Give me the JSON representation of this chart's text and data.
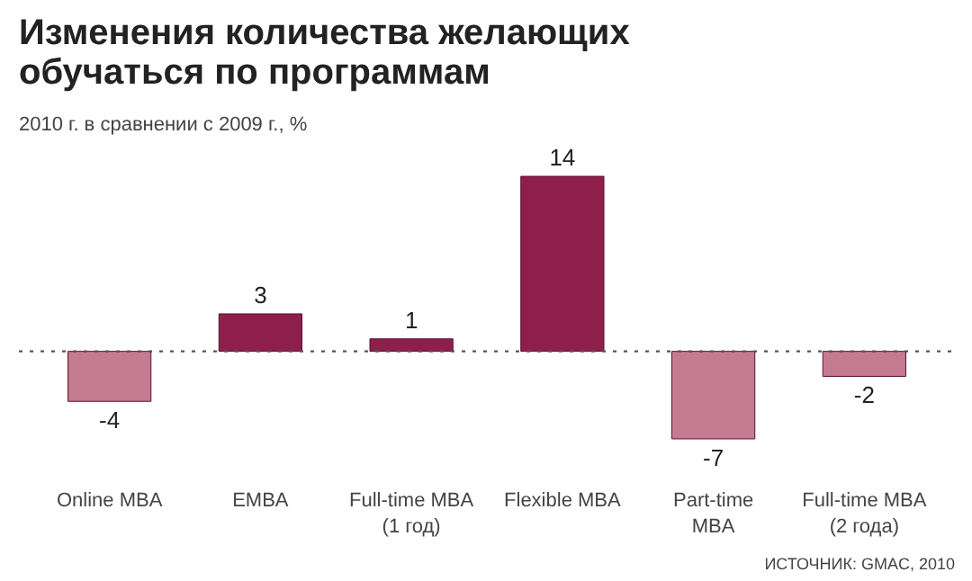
{
  "chart_data": {
    "type": "bar",
    "title": "Изменения количества желающих\nобучаться по программам",
    "subtitle": "2010 г. в сравнении с 2009 г., %",
    "categories": [
      "Online MBA",
      "EMBA",
      "Full-time MBA\n(1 год)",
      "Flexible MBA",
      "Part-time\nMBA",
      "Full-time MBA\n(2 года)"
    ],
    "values": [
      -4,
      3,
      1,
      14,
      -7,
      -2
    ],
    "colors": [
      "#c57b8f",
      "#8e1f4a",
      "#8e1f4a",
      "#8e1f4a",
      "#c57b8f",
      "#c57b8f"
    ],
    "data_labels": true,
    "ref_lines": [
      {
        "axis": "y",
        "value": 0,
        "line_style": "dotted",
        "color": "#555555"
      }
    ],
    "annotations": [
      "ИСТОЧНИК: GMAC, 2010"
    ]
  }
}
